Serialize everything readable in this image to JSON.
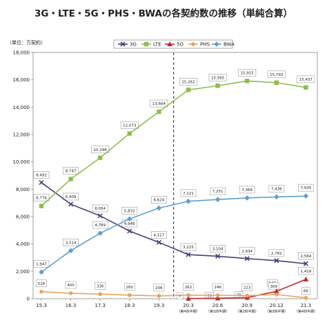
{
  "chart_data": {
    "type": "line",
    "title": "3G・LTE・5G・PHS・BWAの各契約数の推移（単純合算）",
    "unit_label": "（単位：万契約）",
    "x": [
      "15.3",
      "16.3",
      "17.3",
      "18.3",
      "19.3",
      "20.3",
      "20.6",
      "20.9",
      "20.12",
      "21.3"
    ],
    "x_sublabels": [
      "",
      "",
      "",
      "",
      "",
      "（第4四半期）",
      "（第1四半期）",
      "（第2四半期）",
      "（第3四半期）",
      "（第4四半期）"
    ],
    "ylim": [
      0,
      18000
    ],
    "yticks": [
      "0",
      "2,000",
      "4,000",
      "6,000",
      "8,000",
      "10,000",
      "12,000",
      "14,000",
      "16,000",
      "18,000"
    ],
    "divider_after_index": 4,
    "grid": false,
    "legend_position": "top-right",
    "series": [
      {
        "name": "3G",
        "color": "#4a3c7a",
        "marker": "x",
        "values": [
          8492,
          6909,
          6054,
          4946,
          4117,
          3225,
          3104,
          2934,
          2782,
          2564
        ],
        "labels": [
          "8,492",
          "6,909",
          "6,054",
          "4,946",
          "4,117",
          "3,225",
          "3,104",
          "2,934",
          "2,782",
          "2,564"
        ]
      },
      {
        "name": "LTE",
        "color": "#8cbf4a",
        "marker": "square",
        "values": [
          6776,
          8747,
          10298,
          12073,
          13664,
          15262,
          15565,
          15915,
          15793,
          15437
        ],
        "labels": [
          "6,776",
          "8,747",
          "10,298",
          "12,073",
          "13,664",
          "15,262",
          "15,565",
          "15,915",
          "15,793",
          "15,437"
        ]
      },
      {
        "name": "5G",
        "color": "#c0282d",
        "marker": "triangle",
        "values": [
          null,
          null,
          null,
          null,
          null,
          7,
          33,
          79,
          543,
          1419
        ],
        "labels": [
          "",
          "",
          "",
          "",
          "",
          "7",
          "33",
          "79",
          "543",
          "1,419"
        ]
      },
      {
        "name": "PHS",
        "color": "#e8a45c",
        "marker": "circle",
        "values": [
          516,
          400,
          336,
          260,
          206,
          262,
          246,
          223,
          309,
          66
        ],
        "labels": [
          "516",
          "400",
          "336",
          "260",
          "206",
          "262",
          "246",
          "223",
          "309",
          "66"
        ]
      },
      {
        "name": "BWA",
        "color": "#5aa0d4",
        "marker": "diamond",
        "values": [
          1947,
          3514,
          4789,
          5832,
          6624,
          7121,
          7251,
          7366,
          7438,
          7505
        ],
        "labels": [
          "1,947",
          "3,514",
          "4,789",
          "5,832",
          "6,624",
          "7,121",
          "7,251",
          "7,366",
          "7,438",
          "7,505"
        ]
      }
    ]
  }
}
